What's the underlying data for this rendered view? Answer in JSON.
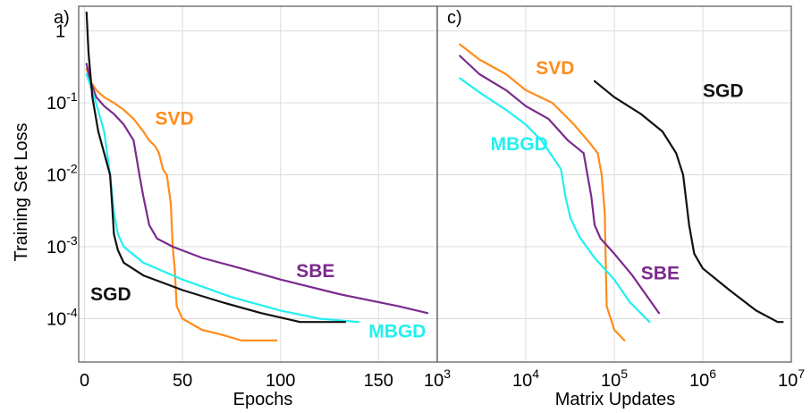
{
  "chart_data": [
    {
      "type": "line",
      "panel_label": "a)",
      "xlabel": "Epochs",
      "ylabel": "Training Set Loss",
      "xlim": [
        -3,
        180
      ],
      "ylim": [
        2.5e-05,
        2.2
      ],
      "yscale": "log",
      "grid": true,
      "x_ticks": [
        0,
        50,
        100,
        150
      ],
      "x_tick_labels": [
        "0",
        "50",
        "100",
        "150"
      ],
      "y_ticks": [
        0.0001,
        0.001,
        0.01,
        0.1,
        1
      ],
      "y_tick_labels": [
        {
          "base": "10",
          "exp": "-4"
        },
        {
          "base": "10",
          "exp": "-3"
        },
        {
          "base": "10",
          "exp": "-2"
        },
        {
          "base": "10",
          "exp": "-1"
        },
        {
          "base": "1",
          "exp": ""
        }
      ],
      "series": [
        {
          "name": "SVD",
          "color": "#ff8c1a",
          "label_anchor": [
            36,
            0.05
          ],
          "points": [
            [
              1,
              0.3
            ],
            [
              3,
              0.2
            ],
            [
              6,
              0.15
            ],
            [
              10,
              0.12
            ],
            [
              15,
              0.1
            ],
            [
              20,
              0.08
            ],
            [
              25,
              0.06
            ],
            [
              30,
              0.04
            ],
            [
              33,
              0.03
            ],
            [
              36,
              0.025
            ],
            [
              38,
              0.02
            ],
            [
              40,
              0.012
            ],
            [
              42,
              0.01
            ],
            [
              44,
              0.004
            ],
            [
              45,
              0.001
            ],
            [
              46,
              0.0005
            ],
            [
              47,
              0.00015
            ],
            [
              50,
              0.0001
            ],
            [
              60,
              7e-05
            ],
            [
              70,
              6e-05
            ],
            [
              80,
              5e-05
            ],
            [
              98,
              5e-05
            ]
          ]
        },
        {
          "name": "SBE",
          "color": "#7b2a8e",
          "label_anchor": [
            108,
            0.00038
          ],
          "points": [
            [
              1,
              0.35
            ],
            [
              3,
              0.2
            ],
            [
              6,
              0.12
            ],
            [
              10,
              0.09
            ],
            [
              15,
              0.07
            ],
            [
              20,
              0.05
            ],
            [
              25,
              0.03
            ],
            [
              28,
              0.01
            ],
            [
              30,
              0.005
            ],
            [
              33,
              0.002
            ],
            [
              37,
              0.0013
            ],
            [
              45,
              0.001
            ],
            [
              60,
              0.0007
            ],
            [
              80,
              0.0005
            ],
            [
              100,
              0.00035
            ],
            [
              130,
              0.00022
            ],
            [
              160,
              0.00015
            ],
            [
              175,
              0.00012
            ]
          ]
        },
        {
          "name": "MBGD",
          "color": "#22f0f0",
          "label_anchor": [
            145,
            5.5e-05
          ],
          "points": [
            [
              1,
              0.25
            ],
            [
              5,
              0.12
            ],
            [
              10,
              0.04
            ],
            [
              13,
              0.01
            ],
            [
              15,
              0.003
            ],
            [
              17,
              0.0015
            ],
            [
              20,
              0.001
            ],
            [
              30,
              0.0006
            ],
            [
              50,
              0.00035
            ],
            [
              75,
              0.0002
            ],
            [
              100,
              0.00013
            ],
            [
              120,
              0.0001
            ],
            [
              140,
              9e-05
            ]
          ]
        },
        {
          "name": "SGD",
          "color": "#111111",
          "label_anchor": [
            3,
            0.00018
          ],
          "points": [
            [
              1,
              1.8
            ],
            [
              2,
              0.5
            ],
            [
              4,
              0.12
            ],
            [
              7,
              0.04
            ],
            [
              10,
              0.02
            ],
            [
              13,
              0.01
            ],
            [
              14,
              0.004
            ],
            [
              15,
              0.0015
            ],
            [
              17,
              0.0009
            ],
            [
              20,
              0.0006
            ],
            [
              30,
              0.0004
            ],
            [
              50,
              0.00025
            ],
            [
              70,
              0.00017
            ],
            [
              90,
              0.00012
            ],
            [
              110,
              9e-05
            ],
            [
              133,
              9e-05
            ]
          ]
        }
      ]
    },
    {
      "type": "line",
      "panel_label": "c)",
      "xlabel": "Matrix Updates",
      "ylabel": "",
      "xscale": "log",
      "yscale": "log",
      "xlim": [
        1000,
        10000000
      ],
      "ylim": [
        2.5e-05,
        2.2
      ],
      "grid": true,
      "x_ticks": [
        1000,
        10000,
        100000,
        1000000,
        10000000
      ],
      "x_tick_labels": [
        {
          "base": "10",
          "exp": "3"
        },
        {
          "base": "10",
          "exp": "4"
        },
        {
          "base": "10",
          "exp": "5"
        },
        {
          "base": "10",
          "exp": "6"
        },
        {
          "base": "10",
          "exp": "7"
        }
      ],
      "series": [
        {
          "name": "SVD",
          "color": "#ff8c1a",
          "label_anchor": [
            13000,
            0.25
          ],
          "points": [
            [
              1800,
              0.65
            ],
            [
              3000,
              0.4
            ],
            [
              6000,
              0.25
            ],
            [
              10000,
              0.15
            ],
            [
              20000,
              0.1
            ],
            [
              35000,
              0.05
            ],
            [
              50000,
              0.03
            ],
            [
              65000,
              0.02
            ],
            [
              72000,
              0.01
            ],
            [
              78000,
              0.003
            ],
            [
              82000,
              0.00015
            ],
            [
              100000,
              7e-05
            ],
            [
              130000,
              5e-05
            ]
          ]
        },
        {
          "name": "SBE",
          "color": "#7b2a8e",
          "label_anchor": [
            200000,
            0.00035
          ],
          "points": [
            [
              1800,
              0.45
            ],
            [
              3000,
              0.25
            ],
            [
              6000,
              0.15
            ],
            [
              10000,
              0.09
            ],
            [
              18000,
              0.06
            ],
            [
              30000,
              0.03
            ],
            [
              45000,
              0.02
            ],
            [
              55000,
              0.005
            ],
            [
              60000,
              0.002
            ],
            [
              70000,
              0.0013
            ],
            [
              100000,
              0.0008
            ],
            [
              160000,
              0.0004
            ],
            [
              320000,
              0.00012
            ]
          ]
        },
        {
          "name": "MBGD",
          "color": "#22f0f0",
          "label_anchor": [
            4000,
            0.022
          ],
          "points": [
            [
              1800,
              0.22
            ],
            [
              3000,
              0.14
            ],
            [
              6000,
              0.08
            ],
            [
              10000,
              0.05
            ],
            [
              15000,
              0.03
            ],
            [
              20000,
              0.018
            ],
            [
              25000,
              0.012
            ],
            [
              28000,
              0.005
            ],
            [
              32000,
              0.0025
            ],
            [
              40000,
              0.0014
            ],
            [
              60000,
              0.0007
            ],
            [
              100000,
              0.00035
            ],
            [
              150000,
              0.00017
            ],
            [
              250000,
              9e-05
            ]
          ]
        },
        {
          "name": "SGD",
          "color": "#111111",
          "label_anchor": [
            1000000,
            0.12
          ],
          "points": [
            [
              60000,
              0.2
            ],
            [
              100000,
              0.12
            ],
            [
              200000,
              0.07
            ],
            [
              350000,
              0.04
            ],
            [
              500000,
              0.02
            ],
            [
              600000,
              0.01
            ],
            [
              700000,
              0.002
            ],
            [
              800000,
              0.0008
            ],
            [
              1000000,
              0.0005
            ],
            [
              2000000,
              0.00025
            ],
            [
              4000000,
              0.00013
            ],
            [
              7000000,
              9e-05
            ],
            [
              8000000,
              9e-05
            ]
          ]
        }
      ]
    }
  ]
}
